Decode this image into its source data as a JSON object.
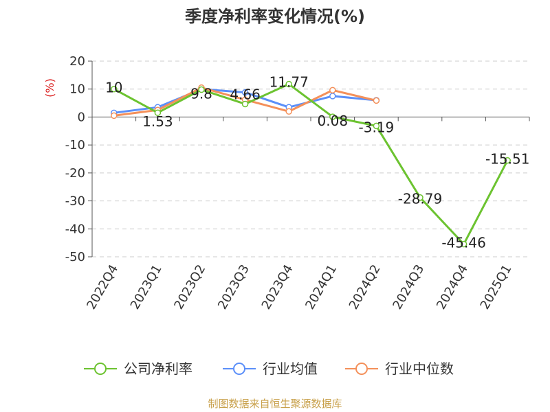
{
  "title": "季度净利率变化情况(%)",
  "source": "制图数据来自恒生聚源数据库",
  "chart_data": {
    "type": "line",
    "title": "季度净利率变化情况(%)",
    "ylabel": "(%)",
    "categories": [
      "2022Q4",
      "2023Q1",
      "2023Q2",
      "2023Q3",
      "2023Q4",
      "2024Q1",
      "2024Q2",
      "2024Q3",
      "2024Q4",
      "2025Q1"
    ],
    "ylim": [
      -50,
      20
    ],
    "yticks": [
      20,
      10,
      0,
      -10,
      -20,
      -30,
      -40,
      -50
    ],
    "grid": true,
    "legend_position": "bottom",
    "series": [
      {
        "name": "公司净利率",
        "color": "#6cc330",
        "values": [
          10,
          1.53,
          9.8,
          4.66,
          11.77,
          0.08,
          -3.19,
          -28.79,
          -45.46,
          -15.51
        ],
        "labels": [
          "10",
          "1.53",
          "9.8",
          "4.66",
          "11.77",
          "0.08",
          "-3.19",
          "-28.79",
          "-45.46",
          "-15.51"
        ]
      },
      {
        "name": "行业均值",
        "color": "#5b8ff9",
        "values": [
          1.5,
          3.5,
          10.0,
          8.8,
          3.5,
          7.5,
          6.0,
          null,
          null,
          null
        ]
      },
      {
        "name": "行业中位数",
        "color": "#f4905a",
        "values": [
          0.5,
          2.5,
          10.5,
          6.2,
          2.0,
          9.6,
          5.9,
          null,
          null,
          null
        ]
      }
    ]
  }
}
